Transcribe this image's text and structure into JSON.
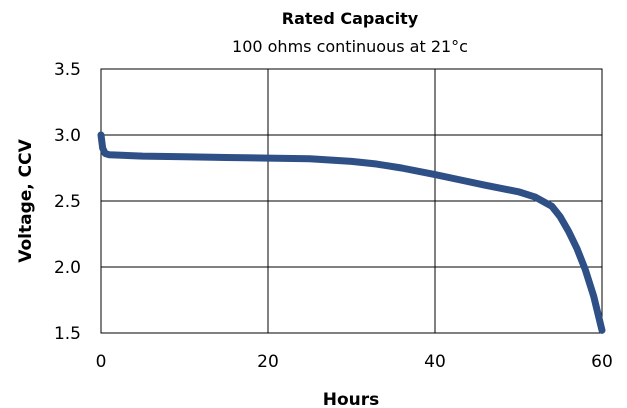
{
  "chart_data": {
    "type": "line",
    "title": "Rated Capacity",
    "subtitle": "100 ohms continuous at 21°c",
    "xlabel": "Hours",
    "ylabel": "Voltage, CCV",
    "xlim": [
      0,
      60
    ],
    "ylim": [
      1.5,
      3.5
    ],
    "xticks": [
      0,
      20,
      40,
      60
    ],
    "yticks": [
      1.5,
      2.0,
      2.5,
      3.0,
      3.5
    ],
    "xtick_labels": [
      "0",
      "20",
      "40",
      "60"
    ],
    "ytick_labels": [
      "1.5",
      "2.0",
      "2.5",
      "3.0",
      "3.5"
    ],
    "grid": true,
    "line_color": "#2e5086",
    "series": [
      {
        "x": [
          0,
          0.2,
          0.5,
          1,
          5,
          10,
          15,
          20,
          25,
          30,
          33,
          36,
          40,
          43,
          46,
          50,
          52,
          54,
          55,
          56,
          57,
          58,
          59,
          60
        ],
        "y": [
          3.0,
          2.9,
          2.86,
          2.85,
          2.84,
          2.835,
          2.83,
          2.825,
          2.82,
          2.8,
          2.78,
          2.75,
          2.7,
          2.66,
          2.62,
          2.57,
          2.53,
          2.46,
          2.38,
          2.27,
          2.14,
          1.98,
          1.78,
          1.52
        ]
      }
    ]
  }
}
